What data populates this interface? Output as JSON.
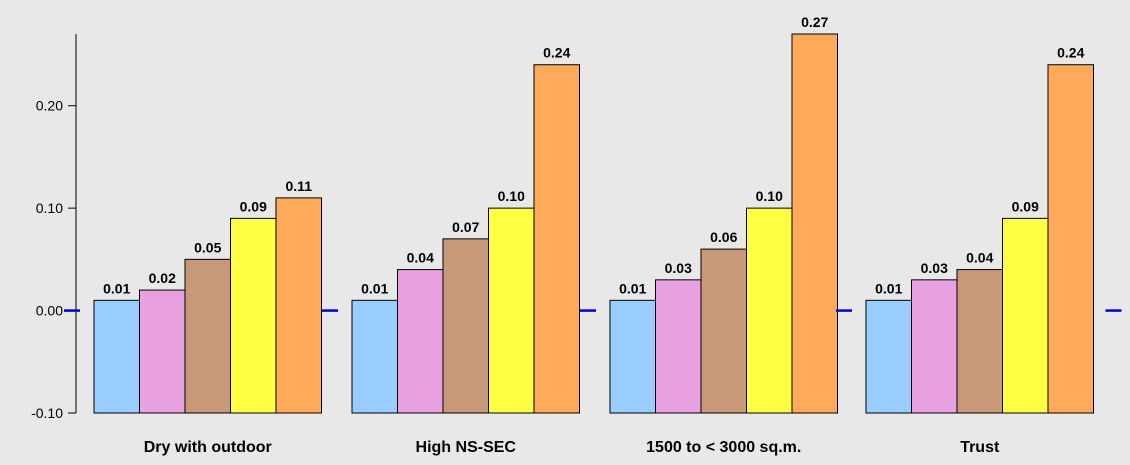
{
  "chart_data": {
    "type": "bar",
    "categories": [
      "Dry with outdoor",
      "High NS-SEC",
      "1500 to < 3000 sq.m.",
      "Trust"
    ],
    "series": [
      {
        "values": [
          0.01,
          0.01,
          0.01,
          0.01
        ],
        "color": "#99ccff"
      },
      {
        "values": [
          0.02,
          0.04,
          0.03,
          0.03
        ],
        "color": "#e8a0e0"
      },
      {
        "values": [
          0.05,
          0.07,
          0.06,
          0.04
        ],
        "color": "#c8987a"
      },
      {
        "values": [
          0.09,
          0.1,
          0.1,
          0.09
        ],
        "color": "#ffff44"
      },
      {
        "values": [
          0.11,
          0.24,
          0.27,
          0.24
        ],
        "color": "#ffaa5a"
      }
    ],
    "data_labels": [
      [
        "0.01",
        "0.01",
        "0.01",
        "0.01"
      ],
      [
        "0.02",
        "0.04",
        "0.03",
        "0.03"
      ],
      [
        "0.05",
        "0.07",
        "0.06",
        "0.04"
      ],
      [
        "0.09",
        "0.10",
        "0.10",
        "0.09"
      ],
      [
        "0.11",
        "0.24",
        "0.27",
        "0.24"
      ]
    ],
    "y_ticks": [
      -0.1,
      0.0,
      0.1,
      0.2
    ],
    "y_tick_labels": [
      "-0.10",
      "0.00",
      "0.10",
      "0.20"
    ],
    "ylim": [
      -0.1,
      0.27
    ],
    "grid": false,
    "baseline_marker_color": "#0000cc",
    "axis_color": "#000000"
  }
}
